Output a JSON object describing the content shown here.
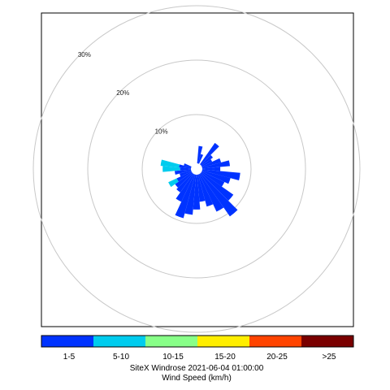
{
  "chart_data": {
    "type": "windrose",
    "title": "SiteX Windrose 2021-06-04 01:00:00",
    "legend_title": "Wind Speed (km/h)",
    "radial_unit": "%",
    "rings": [
      {
        "value": 10,
        "label": "10%"
      },
      {
        "value": 20,
        "label": "20%"
      },
      {
        "value": 30,
        "label": "30%"
      }
    ],
    "grid": true,
    "speed_bins": [
      {
        "label": "1-5",
        "color": "#0033ff"
      },
      {
        "label": "5-10",
        "color": "#00ccee"
      },
      {
        "label": "10-15",
        "color": "#88ff88"
      },
      {
        "label": "15-20",
        "color": "#ffee00"
      },
      {
        "label": "20-25",
        "color": "#ff4400"
      },
      {
        "label": ">25",
        "color": "#7a0000"
      }
    ],
    "sector_width_deg": 10,
    "sectors": [
      {
        "dir": 0,
        "values": [
          0.0,
          0,
          0,
          0,
          0,
          0
        ]
      },
      {
        "dir": 10,
        "values": [
          3.2,
          0,
          0,
          0,
          0,
          0
        ]
      },
      {
        "dir": 20,
        "values": [
          1.8,
          0,
          0,
          0,
          0,
          0
        ]
      },
      {
        "dir": 30,
        "values": [
          0.0,
          0,
          0,
          0,
          0,
          0
        ]
      },
      {
        "dir": 40,
        "values": [
          4.8,
          0,
          0,
          0,
          0,
          0
        ]
      },
      {
        "dir": 50,
        "values": [
          2.6,
          0,
          0,
          0,
          0,
          0
        ]
      },
      {
        "dir": 60,
        "values": [
          2.1,
          0,
          0,
          0,
          0,
          0
        ]
      },
      {
        "dir": 70,
        "values": [
          3.6,
          0,
          0,
          0,
          0,
          0
        ]
      },
      {
        "dir": 80,
        "values": [
          5.1,
          0,
          0,
          0,
          0,
          0
        ]
      },
      {
        "dir": 90,
        "values": [
          3.3,
          0,
          0,
          0,
          0,
          0
        ]
      },
      {
        "dir": 100,
        "values": [
          7.0,
          0,
          0,
          0,
          0,
          0
        ]
      },
      {
        "dir": 110,
        "values": [
          5.4,
          0,
          0,
          0,
          0,
          0
        ]
      },
      {
        "dir": 120,
        "values": [
          4.6,
          0,
          0,
          0,
          0,
          0
        ]
      },
      {
        "dir": 130,
        "values": [
          7.2,
          0,
          0,
          0,
          0,
          0
        ]
      },
      {
        "dir": 140,
        "values": [
          9.6,
          0,
          0,
          0,
          0,
          0
        ]
      },
      {
        "dir": 150,
        "values": [
          7.6,
          0,
          0,
          0,
          0,
          0
        ]
      },
      {
        "dir": 160,
        "values": [
          6.1,
          0,
          0,
          0,
          0,
          0
        ]
      },
      {
        "dir": 170,
        "values": [
          5.0,
          0,
          0,
          0,
          0,
          0
        ]
      },
      {
        "dir": 180,
        "values": [
          6.4,
          0,
          0,
          0,
          0,
          0
        ]
      },
      {
        "dir": 190,
        "values": [
          7.4,
          0,
          0,
          0,
          0,
          0
        ]
      },
      {
        "dir": 200,
        "values": [
          8.3,
          0,
          0,
          0,
          0,
          0
        ]
      },
      {
        "dir": 210,
        "values": [
          5.6,
          0,
          0,
          0,
          0,
          0
        ]
      },
      {
        "dir": 220,
        "values": [
          4.2,
          0,
          0,
          0,
          0,
          0
        ]
      },
      {
        "dir": 230,
        "values": [
          3.8,
          0,
          0,
          0,
          0,
          0
        ]
      },
      {
        "dir": 240,
        "values": [
          3.0,
          1.7,
          0,
          0,
          0,
          0
        ]
      },
      {
        "dir": 250,
        "values": [
          2.2,
          0,
          0,
          0,
          0,
          0
        ]
      },
      {
        "dir": 260,
        "values": [
          3.0,
          0,
          0,
          0,
          0,
          0
        ]
      },
      {
        "dir": 270,
        "values": [
          2.0,
          3.2,
          0,
          0,
          0,
          0
        ]
      },
      {
        "dir": 280,
        "values": [
          2.2,
          3.4,
          0,
          0,
          0,
          0
        ]
      },
      {
        "dir": 290,
        "values": [
          1.4,
          0,
          0,
          0,
          0,
          0
        ]
      },
      {
        "dir": 300,
        "values": [
          0.0,
          0,
          0,
          0,
          0,
          0
        ]
      },
      {
        "dir": 310,
        "values": [
          0.0,
          0,
          0,
          0,
          0,
          0
        ]
      },
      {
        "dir": 320,
        "values": [
          0.0,
          0,
          0,
          0,
          0,
          0
        ]
      },
      {
        "dir": 330,
        "values": [
          0.0,
          0,
          0,
          0,
          0,
          0
        ]
      },
      {
        "dir": 340,
        "values": [
          0.0,
          0,
          0,
          0,
          0,
          0
        ]
      },
      {
        "dir": 350,
        "values": [
          0.0,
          0,
          0,
          0,
          0,
          0
        ]
      }
    ]
  }
}
